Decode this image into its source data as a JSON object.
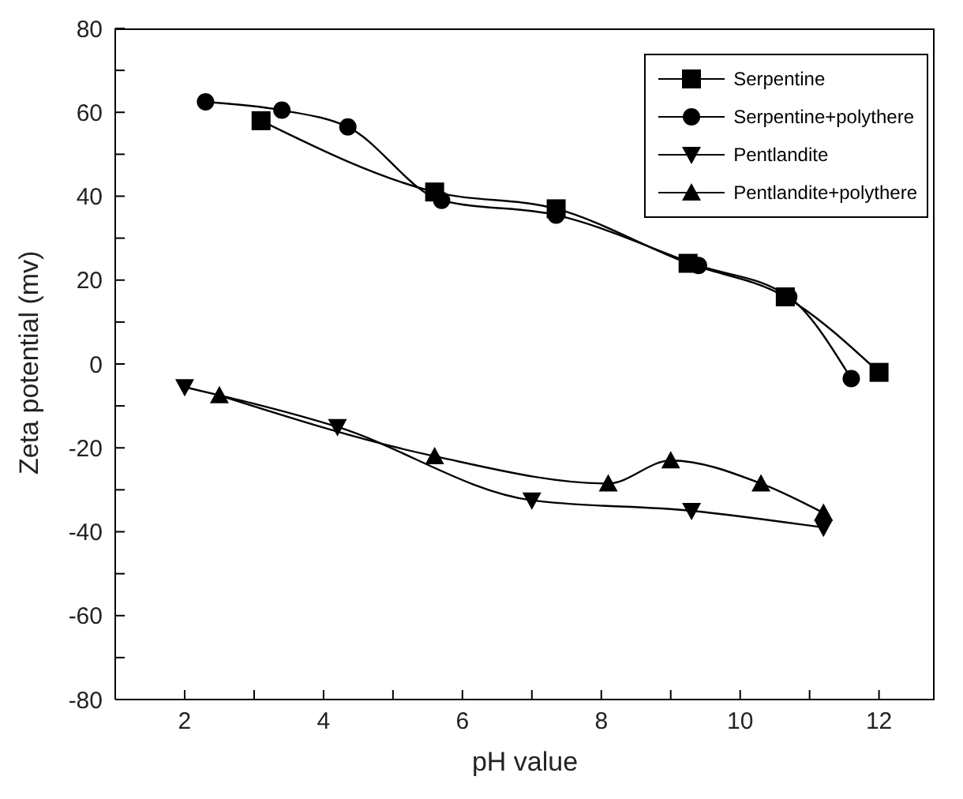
{
  "chart_data": {
    "type": "line",
    "xlabel": "pH value",
    "ylabel": "Zeta potential (mv)",
    "xlim": [
      1,
      12.8
    ],
    "ylim": [
      -80,
      80
    ],
    "xticks": [
      2,
      {
        "value": 3,
        "label": null
      },
      4,
      {
        "value": 5,
        "label": null
      },
      6,
      {
        "value": 7,
        "label": null
      },
      8,
      {
        "value": 9,
        "label": null
      },
      10,
      {
        "value": 11,
        "label": null
      },
      12
    ],
    "yticks": [
      -80,
      {
        "value": -70,
        "label": null
      },
      -60,
      {
        "value": -50,
        "label": null
      },
      -40,
      {
        "value": -30,
        "label": null
      },
      -20,
      {
        "value": -10,
        "label": null
      },
      0,
      {
        "value": 10,
        "label": null
      },
      20,
      {
        "value": 30,
        "label": null
      },
      40,
      {
        "value": 50,
        "label": null
      },
      60,
      {
        "value": 70,
        "label": null
      },
      80
    ],
    "grid": false,
    "legend": "top right",
    "line_style": "solid",
    "series": [
      {
        "name": "Serpentine",
        "color": "#000000",
        "marker": "square",
        "x": [
          3.1,
          5.6,
          7.35,
          9.25,
          10.65,
          12
        ],
        "values": [
          58,
          41,
          37,
          24,
          16,
          -2
        ]
      },
      {
        "name": "Serpentine+polythere",
        "color": "#000000",
        "marker": "circle",
        "x": [
          2.3,
          3.4,
          4.35,
          5.7,
          7.35,
          9.4,
          10.7,
          11.6
        ],
        "values": [
          62.5,
          60.5,
          56.5,
          39,
          35.5,
          23.5,
          16,
          -3.5
        ]
      },
      {
        "name": "Pentlandite",
        "color": "#000000",
        "marker": "triangle-down",
        "x": [
          2,
          4.2,
          7,
          9.3,
          11.2
        ],
        "values": [
          -5.5,
          -15,
          -32.5,
          -35,
          -39
        ]
      },
      {
        "name": "Pentlandite+polythere",
        "color": "#000000",
        "marker": "triangle",
        "x": [
          2.5,
          5.6,
          8.1,
          9,
          10.3,
          11.2
        ],
        "values": [
          -7.5,
          -22,
          -28.5,
          -23,
          -28.5,
          -35.5
        ]
      }
    ]
  }
}
